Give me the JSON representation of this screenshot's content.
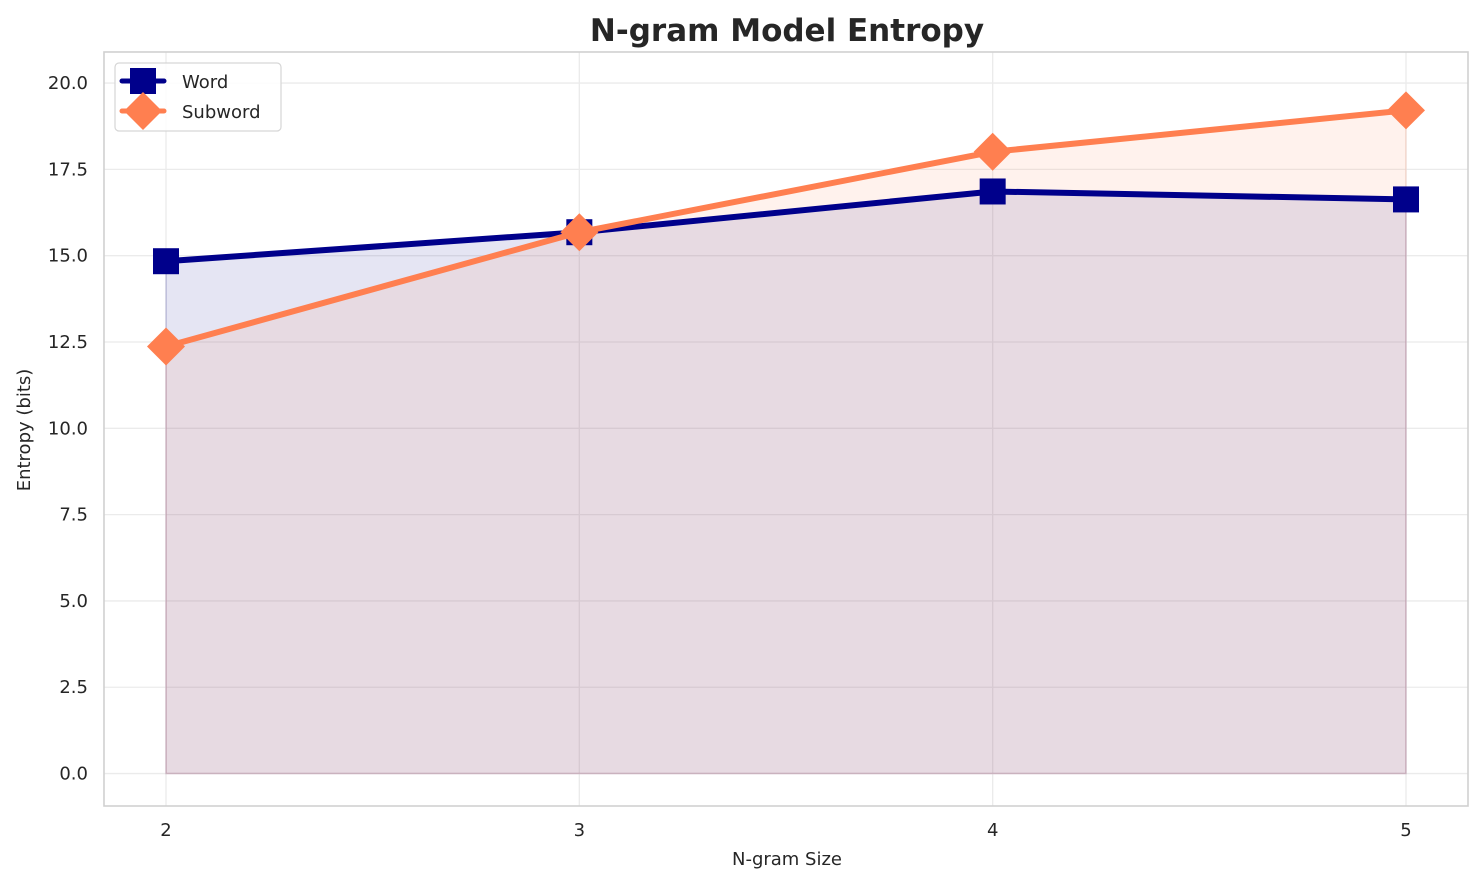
{
  "chart_data": {
    "type": "line",
    "title": "N-gram Model Entropy",
    "xlabel": "N-gram Size",
    "ylabel": "Entropy (bits)",
    "x": [
      2,
      3,
      4,
      5
    ],
    "x_tick_labels": [
      "2",
      "3",
      "4",
      "5"
    ],
    "y_tick_values": [
      0,
      2.5,
      5,
      7.5,
      10,
      12.5,
      15,
      17.5,
      20
    ],
    "y_tick_labels": [
      "0.0",
      "2.5",
      "5.0",
      "7.5",
      "10.0",
      "12.5",
      "15.0",
      "17.5",
      "20.0"
    ],
    "xlim": [
      1.85,
      5.15
    ],
    "ylim": [
      -0.94,
      20.9
    ],
    "grid": true,
    "legend_position": "upper left",
    "fill_under_lines": true,
    "series": [
      {
        "name": "Word",
        "values": [
          14.84,
          15.68,
          16.86,
          16.63
        ],
        "color": "#00008b",
        "marker": "square",
        "fill_color": "#e6e6f3"
      },
      {
        "name": "Subword",
        "values": [
          12.37,
          15.68,
          18.01,
          19.21
        ],
        "color": "#ff7f50",
        "marker": "diamond",
        "fill_color": "#ffeeea"
      }
    ]
  },
  "legend": {
    "items": [
      "Word",
      "Subword"
    ]
  }
}
